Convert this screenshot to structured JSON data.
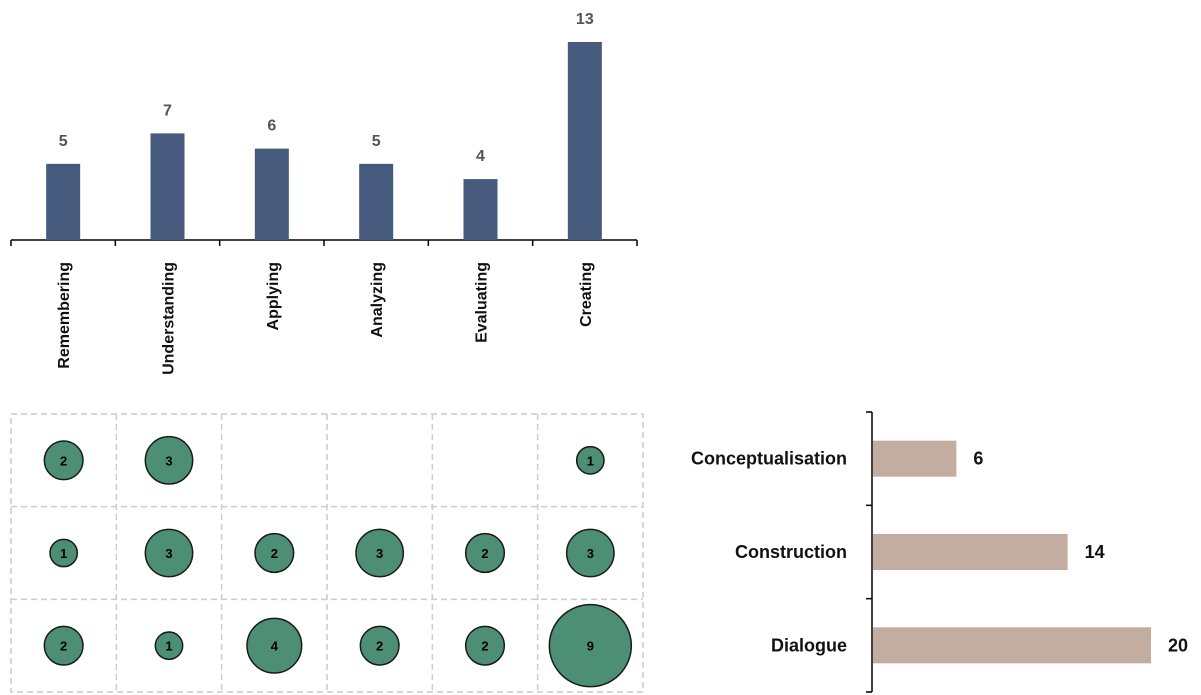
{
  "colors": {
    "bar": "#455a7c",
    "bubble_fill": "#4d8f74",
    "bubble_stroke": "#1a1a1a",
    "hbar": "#c2ada0",
    "grid": "#cccccc",
    "axis": "#000000"
  },
  "chart_data": [
    {
      "type": "bar",
      "categories": [
        "Remembering",
        "Understanding",
        "Applying",
        "Analyzing",
        "Evaluating",
        "Creating"
      ],
      "values": [
        5,
        7,
        6,
        5,
        4,
        13
      ],
      "value_labels": [
        "5",
        "7",
        "6",
        "5",
        "4",
        "13"
      ],
      "ylim": [
        0,
        13
      ],
      "grid": false,
      "orientation": "vertical"
    },
    {
      "type": "scatter",
      "subtype": "bubble-matrix",
      "columns": [
        "Remembering",
        "Understanding",
        "Applying",
        "Analyzing",
        "Evaluating",
        "Creating"
      ],
      "rows": [
        "Conceptualisation",
        "Construction",
        "Dialogue"
      ],
      "cells": [
        [
          2,
          3,
          null,
          null,
          null,
          1
        ],
        [
          1,
          3,
          2,
          3,
          2,
          3
        ],
        [
          2,
          1,
          4,
          2,
          2,
          9
        ]
      ],
      "cell_labels": [
        [
          "2",
          "3",
          "",
          "",
          "",
          "1"
        ],
        [
          "1",
          "3",
          "2",
          "3",
          "2",
          "3"
        ],
        [
          "2",
          "1",
          "4",
          "2",
          "2",
          "9"
        ]
      ],
      "grid": true
    },
    {
      "type": "bar",
      "orientation": "horizontal",
      "categories": [
        "Conceptualisation",
        "Construction",
        "Dialogue"
      ],
      "values": [
        6,
        14,
        20
      ],
      "value_labels": [
        "6",
        "14",
        "20"
      ],
      "xlim": [
        0,
        20
      ],
      "grid": false
    }
  ]
}
